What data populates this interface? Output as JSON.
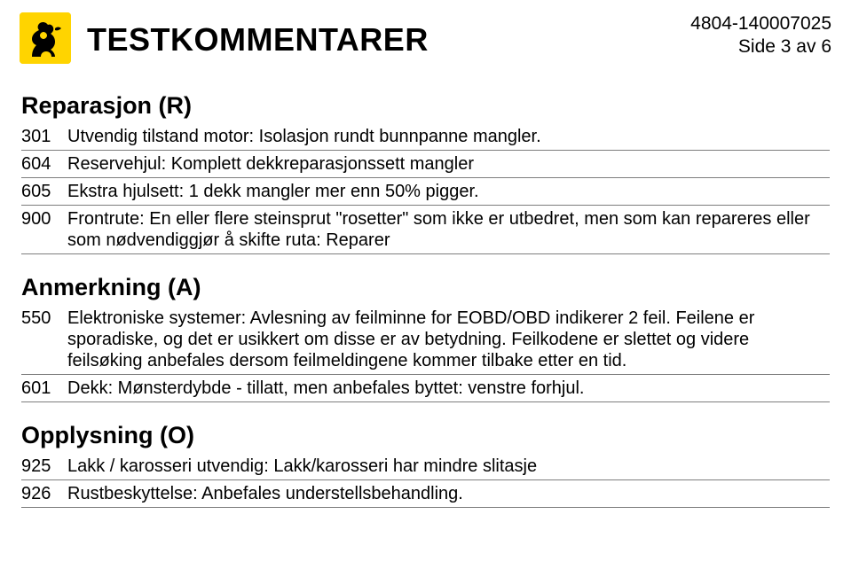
{
  "header": {
    "title": "TESTKOMMENTARER",
    "doc_id": "4804-140007025",
    "page_info": "Side 3 av 6"
  },
  "sections": [
    {
      "heading": "Reparasjon (R)",
      "rows": [
        {
          "code": "301",
          "text": "Utvendig tilstand motor: Isolasjon rundt bunnpanne mangler."
        },
        {
          "code": "604",
          "text": "Reservehjul: Komplett dekkreparasjonssett mangler"
        },
        {
          "code": "605",
          "text": "Ekstra hjulsett: 1 dekk mangler mer enn 50% pigger."
        },
        {
          "code": "900",
          "text": "Frontrute: En eller flere steinsprut \"rosetter\" som ikke er utbedret, men som kan repareres eller som nødvendiggjør å skifte ruta: Reparer"
        }
      ]
    },
    {
      "heading": "Anmerkning (A)",
      "rows": [
        {
          "code": "550",
          "text": "Elektroniske systemer: Avlesning av feilminne for EOBD/OBD indikerer 2 feil. Feilene er sporadiske, og det er usikkert om disse er av betydning. Feilkodene er slettet og videre feilsøking anbefales dersom feilmeldingene kommer tilbake etter en tid."
        },
        {
          "code": "601",
          "text": "Dekk: Mønsterdybde - tillatt, men anbefales byttet: venstre forhjul."
        }
      ]
    },
    {
      "heading": "Opplysning (O)",
      "rows": [
        {
          "code": "925",
          "text": "Lakk / karosseri utvendig: Lakk/karosseri har mindre slitasje"
        },
        {
          "code": "926",
          "text": "Rustbeskyttelse: Anbefales understellsbehandling."
        }
      ]
    }
  ]
}
